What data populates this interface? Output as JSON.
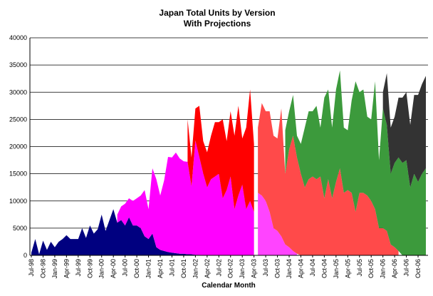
{
  "chart_data": {
    "type": "stacked-area",
    "title": "Japan Total Units by Version",
    "subtitle": "With Projections",
    "x_label": "Calendar Month",
    "ylim": [
      0,
      40000
    ],
    "yticks": [
      0,
      5000,
      10000,
      15000,
      20000,
      25000,
      30000,
      35000,
      40000
    ],
    "grid": true,
    "categories": [
      "Jul-98",
      null,
      null,
      "Oct-98",
      null,
      null,
      "Jan-99",
      null,
      null,
      "Apr-99",
      null,
      null,
      "Jul-99",
      null,
      null,
      "Oct-99",
      null,
      null,
      "Jan-00",
      null,
      null,
      "Apr-00",
      null,
      null,
      "Jul-00",
      null,
      null,
      "Oct-00",
      null,
      null,
      "Jan-01",
      null,
      null,
      "Apr-01",
      null,
      null,
      "Jul-01",
      null,
      null,
      "Oct-01",
      null,
      null,
      "Jan-02",
      null,
      null,
      "Apr-02",
      null,
      null,
      "Jul-02",
      null,
      null,
      "Oct-02",
      null,
      null,
      "Jan-03",
      null,
      null,
      "Apr-03",
      null,
      null,
      "Jul-03",
      null,
      null,
      "Oct-03",
      null,
      null,
      "Jan-04",
      null,
      null,
      "Apr-04",
      null,
      null,
      "Jul-04",
      null,
      null,
      "Oct-04",
      null,
      null,
      "Jan-05",
      null,
      null,
      "Apr-05",
      null,
      null,
      "Jul-05",
      null,
      null,
      "Oct-05",
      null,
      null,
      "Jan-06",
      null,
      null,
      "Apr-06",
      null,
      null,
      "Jul-06",
      null,
      null,
      "Oct-06",
      null,
      null
    ],
    "series": [
      {
        "color": "#000080",
        "values": [
          500,
          3000,
          200,
          2700,
          1000,
          2500,
          1500,
          2500,
          3000,
          3700,
          3000,
          3000,
          3000,
          5000,
          3200,
          5500,
          4000,
          4800,
          7500,
          4500,
          6500,
          8500,
          6000,
          6500,
          5500,
          7000,
          5500,
          5500,
          5000,
          3500,
          3000,
          4000,
          1500,
          1000,
          800,
          600,
          500,
          400,
          300,
          300,
          200,
          200,
          100,
          100,
          50,
          null,
          null,
          null,
          null,
          null,
          null,
          null,
          null,
          null,
          null,
          null,
          null,
          null,
          null,
          null,
          null,
          null,
          null,
          null,
          null,
          null,
          null,
          null,
          null,
          null,
          null,
          null,
          null,
          null,
          null,
          null,
          null,
          null,
          null,
          null,
          null,
          null,
          null,
          null,
          null,
          null,
          null,
          null,
          null,
          null,
          null,
          null,
          null,
          null,
          null,
          null,
          null,
          null,
          null,
          null,
          null,
          null
        ]
      },
      {
        "color": "#ff00ff",
        "values": [
          null,
          null,
          null,
          null,
          null,
          null,
          null,
          null,
          null,
          null,
          null,
          null,
          null,
          null,
          null,
          null,
          null,
          null,
          null,
          null,
          null,
          null,
          1500,
          2500,
          4000,
          3500,
          4500,
          5000,
          6000,
          8500,
          5500,
          12000,
          12500,
          10000,
          13000,
          17500,
          17500,
          18500,
          17500,
          17000,
          17000,
          12500,
          21000,
          18000,
          15000,
          12500,
          14000,
          14500,
          15000,
          10500,
          12000,
          14500,
          8500,
          11000,
          13000,
          8500,
          10000,
          8000,
          null,
          null,
          null,
          null,
          null,
          null,
          null,
          null,
          null,
          null,
          null,
          null,
          null,
          null,
          null,
          null,
          null,
          null,
          null,
          null,
          null,
          null,
          null,
          null,
          null,
          null,
          null,
          null,
          null,
          null,
          null,
          null,
          null,
          null,
          null,
          null,
          null,
          null,
          null,
          null,
          null,
          null,
          null,
          null
        ]
      },
      {
        "color": "#ff0000",
        "values": [
          null,
          null,
          null,
          null,
          null,
          null,
          null,
          null,
          null,
          null,
          null,
          null,
          null,
          null,
          null,
          null,
          null,
          null,
          null,
          null,
          null,
          null,
          null,
          null,
          null,
          null,
          null,
          null,
          null,
          null,
          null,
          null,
          null,
          null,
          null,
          null,
          null,
          null,
          null,
          null,
          7800,
          5300,
          5900,
          9400,
          5950,
          6450,
          8000,
          10000,
          9500,
          14500,
          9000,
          12000,
          13500,
          16500,
          8500,
          15000,
          20500,
          12500,
          null,
          null,
          null,
          null,
          null,
          null,
          null,
          null,
          null,
          null,
          null,
          null,
          null,
          null,
          null,
          null,
          null,
          null,
          null,
          null,
          null,
          null,
          null,
          null,
          null,
          null,
          null,
          null,
          null,
          null,
          null,
          null,
          null,
          null,
          null,
          null,
          null,
          null,
          null,
          null,
          null,
          null,
          null,
          null
        ]
      },
      {
        "color": "#ff44ff",
        "values": [
          null,
          null,
          null,
          null,
          null,
          null,
          null,
          null,
          null,
          null,
          null,
          null,
          null,
          null,
          null,
          null,
          null,
          null,
          null,
          null,
          null,
          null,
          null,
          null,
          null,
          null,
          null,
          null,
          null,
          null,
          null,
          null,
          null,
          null,
          null,
          null,
          null,
          null,
          null,
          null,
          null,
          null,
          null,
          null,
          null,
          null,
          null,
          null,
          null,
          null,
          null,
          null,
          null,
          null,
          null,
          null,
          null,
          null,
          11500,
          11000,
          10000,
          8000,
          5000,
          4500,
          3500,
          2000,
          1500,
          800,
          300,
          null,
          null,
          null,
          null,
          null,
          null,
          null,
          null,
          null,
          null,
          null,
          null,
          null,
          null,
          null,
          null,
          null,
          null,
          null,
          null,
          null,
          null,
          null,
          null,
          null,
          null,
          null,
          null,
          null,
          null,
          null,
          null,
          null
        ]
      },
      {
        "color": "#ff4a4a",
        "values": [
          null,
          null,
          null,
          null,
          null,
          null,
          null,
          null,
          null,
          null,
          null,
          null,
          null,
          null,
          null,
          null,
          null,
          null,
          null,
          null,
          null,
          null,
          null,
          null,
          null,
          null,
          null,
          null,
          null,
          null,
          null,
          null,
          null,
          null,
          null,
          null,
          null,
          null,
          null,
          null,
          null,
          null,
          null,
          null,
          null,
          null,
          null,
          null,
          null,
          null,
          null,
          null,
          null,
          null,
          null,
          null,
          null,
          null,
          12000,
          17000,
          16500,
          18500,
          17000,
          17000,
          23500,
          13000,
          18000,
          21200,
          17700,
          15000,
          12500,
          14000,
          14500,
          14000,
          14500,
          10500,
          14000,
          10500,
          13500,
          16000,
          11500,
          12000,
          11500,
          8000,
          11500,
          11500,
          11000,
          10000,
          8500,
          5000,
          5000,
          4500,
          2000,
          1500,
          800,
          null,
          null,
          null,
          null,
          null,
          null,
          null
        ]
      },
      {
        "color": "#3c9a3c",
        "values": [
          null,
          null,
          null,
          null,
          null,
          null,
          null,
          null,
          null,
          null,
          null,
          null,
          null,
          null,
          null,
          null,
          null,
          null,
          null,
          null,
          null,
          null,
          null,
          null,
          null,
          null,
          null,
          null,
          null,
          null,
          null,
          null,
          null,
          null,
          null,
          null,
          null,
          null,
          null,
          null,
          null,
          null,
          null,
          null,
          null,
          null,
          null,
          null,
          null,
          null,
          null,
          null,
          null,
          null,
          null,
          null,
          null,
          null,
          null,
          null,
          null,
          null,
          null,
          null,
          null,
          8000,
          7000,
          7500,
          4000,
          5500,
          11000,
          12500,
          12000,
          13500,
          9000,
          18500,
          16500,
          13000,
          17000,
          18000,
          12000,
          11000,
          17000,
          24000,
          18500,
          19000,
          14500,
          15000,
          23500,
          12500,
          22000,
          19500,
          13000,
          15500,
          17200,
          17000,
          17500,
          12500,
          15000,
          13500,
          15000,
          16000
        ]
      },
      {
        "color": "#333333",
        "values": [
          null,
          null,
          null,
          null,
          null,
          null,
          null,
          null,
          null,
          null,
          null,
          null,
          null,
          null,
          null,
          null,
          null,
          null,
          null,
          null,
          null,
          null,
          null,
          null,
          null,
          null,
          null,
          null,
          null,
          null,
          null,
          null,
          null,
          null,
          null,
          null,
          null,
          null,
          null,
          null,
          null,
          null,
          null,
          null,
          null,
          null,
          null,
          null,
          null,
          null,
          null,
          null,
          null,
          null,
          null,
          null,
          null,
          null,
          null,
          null,
          null,
          null,
          null,
          null,
          null,
          null,
          null,
          null,
          null,
          null,
          null,
          null,
          null,
          null,
          null,
          null,
          null,
          null,
          null,
          null,
          null,
          null,
          null,
          null,
          null,
          null,
          null,
          null,
          null,
          null,
          3000,
          9500,
          8500,
          8500,
          11000,
          12000,
          12500,
          11500,
          14500,
          16000,
          16500,
          17000
        ]
      }
    ]
  }
}
